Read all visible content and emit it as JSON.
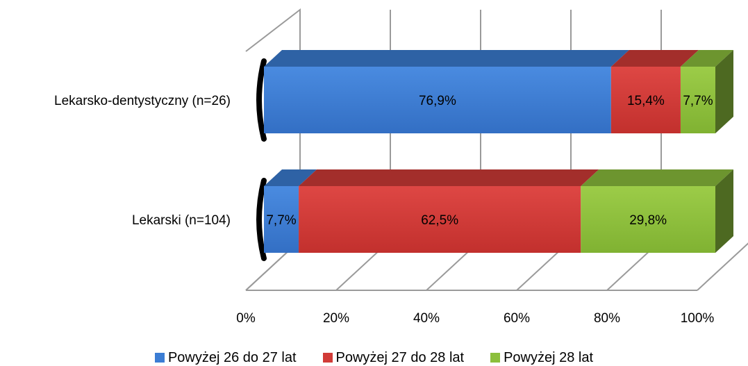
{
  "chart_data": {
    "type": "bar",
    "orientation": "horizontal",
    "stacked": "percent",
    "three_d": true,
    "categories": [
      "Lekarsko-dentystyczny (n=26)",
      "Lekarski (n=104)"
    ],
    "series": [
      {
        "name": "Powyżej 26 do 27 lat",
        "color": "#3b7dd4",
        "values": [
          76.9,
          7.7
        ],
        "labels": [
          "76,9%",
          "7,7%"
        ]
      },
      {
        "name": "Powyżej 27 do 28 lat",
        "color": "#d13b37",
        "values": [
          15.4,
          62.5
        ],
        "labels": [
          "15,4%",
          "62,5%"
        ]
      },
      {
        "name": "Powyżej 28 lat",
        "color": "#8cbf3c",
        "values": [
          7.7,
          29.8
        ],
        "labels": [
          "7,7%",
          "29,8%"
        ]
      }
    ],
    "x_ticks": [
      "0%",
      "20%",
      "40%",
      "60%",
      "80%",
      "100%"
    ],
    "xlim": [
      0,
      100
    ],
    "grid": true,
    "legend_position": "bottom"
  }
}
